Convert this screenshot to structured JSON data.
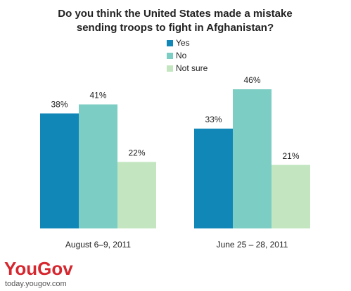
{
  "chart_data": {
    "type": "bar",
    "title": [
      "Do you think the United States made a mistake",
      "sending troops to fight in Afghanistan?"
    ],
    "categories": [
      "August 6–9, 2011",
      "June 25 – 28, 2011"
    ],
    "series": [
      {
        "name": "Yes",
        "color": "#1187b8",
        "values": [
          38,
          33
        ],
        "value_labels": [
          "38%",
          "33%"
        ]
      },
      {
        "name": "No",
        "color": "#7ccdc3",
        "values": [
          41,
          46
        ],
        "value_labels": [
          "41%",
          "46%"
        ]
      },
      {
        "name": "Not sure",
        "color": "#c3e6c1",
        "values": [
          22,
          21
        ],
        "value_labels": [
          "22%",
          "21%"
        ]
      }
    ]
  },
  "footer": {
    "logo": "YouGov",
    "url": "today.yougov.com"
  }
}
